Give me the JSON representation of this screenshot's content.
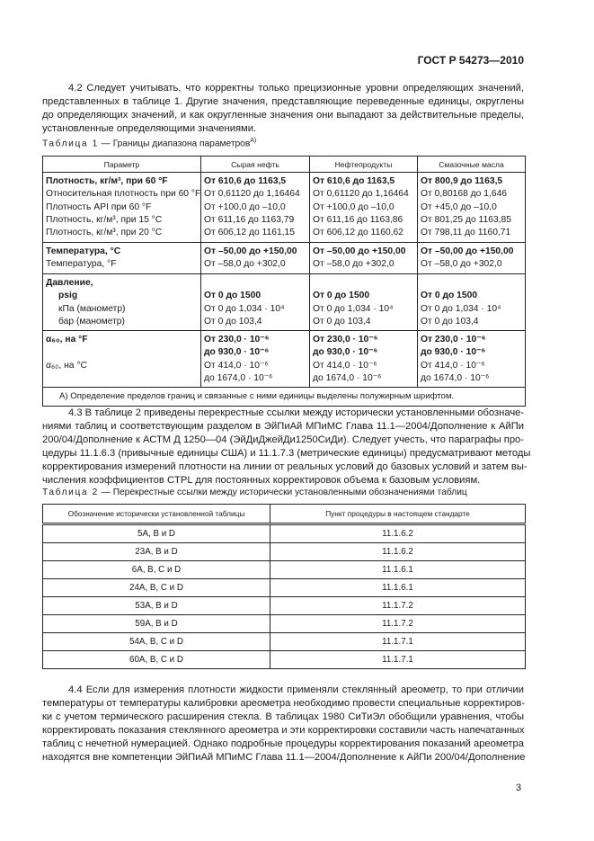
{
  "header": {
    "doc_number": "ГОСТ Р 54273—2010"
  },
  "para_4_2": {
    "lines": [
      "4.2 Следует учитывать, что корректны только прецизионные уровни определяющих значений,",
      "представленных в таблице 1. Другие значения, представляющие переведенные единицы, округлены",
      "до определяющих значений, и как округленные значения они выпадают за действительные пределы,",
      "установленные определяющими значениями."
    ]
  },
  "table1": {
    "caption_label": "Таблица 1",
    "caption_title": " — Границы диапазона параметров",
    "caption_sup": "А)",
    "headers": [
      "Параметр",
      "Сырая нефть",
      "Нефтепродукты",
      "Смазочные масла"
    ],
    "groups": [
      {
        "param": [
          {
            "t": "Плотность, кг/м³, при 60 °F",
            "b": true
          },
          {
            "t": "Относительная плотность при 60 °F"
          },
          {
            "t": "Плотность API при 60 °F"
          },
          {
            "t": "Плотность, кг/м³, при 15 °C"
          },
          {
            "t": "Плотность, кг/м³, при 20 °C"
          }
        ],
        "cols": [
          [
            {
              "t": "От 610,6 до 1163,5",
              "b": true
            },
            {
              "t": "От 0,61120 до 1,16464"
            },
            {
              "t": "От +100,0 до –10,0"
            },
            {
              "t": "От 611,16 до 1163,79"
            },
            {
              "t": "От 606,12 до 1161,15"
            }
          ],
          [
            {
              "t": "От 610,6 до 1163,5",
              "b": true
            },
            {
              "t": "От 0,61120 до 1,16464"
            },
            {
              "t": "От +100,0 до –10,0"
            },
            {
              "t": "От 611,16 до 1163,86"
            },
            {
              "t": "От 606,12 до 1160,62"
            }
          ],
          [
            {
              "t": "От 800,9 до 1163,5",
              "b": true
            },
            {
              "t": "От 0,80168 до 1,646"
            },
            {
              "t": "От +45,0 до –10,0"
            },
            {
              "t": "От 801,25 до 1163,85"
            },
            {
              "t": "От 798,11 до 1160,71"
            }
          ]
        ]
      },
      {
        "param": [
          {
            "t": "Температура, °C",
            "b": true
          },
          {
            "t": "Температура, °F"
          }
        ],
        "cols": [
          [
            {
              "t": "От –50,00 до +150,00",
              "b": true
            },
            {
              "t": "От –58,0 до +302,0"
            }
          ],
          [
            {
              "t": "От –50,00 до +150,00",
              "b": true
            },
            {
              "t": "От –58,0 до +302,0"
            }
          ],
          [
            {
              "t": "От –50,00 до +150,00",
              "b": true
            },
            {
              "t": "От –58,0 до +302,0"
            }
          ]
        ]
      },
      {
        "param": [
          {
            "t": "Давление,",
            "b": true
          },
          {
            "t": "psig",
            "b": true,
            "i": true
          },
          {
            "t": "кПа (манометр)",
            "i": true
          },
          {
            "t": "бар (манометр)",
            "i": true
          }
        ],
        "cols": [
          [
            {
              "t": ""
            },
            {
              "t": "От 0 до 1500",
              "b": true
            },
            {
              "t": "От 0 до 1,034 · 10⁴"
            },
            {
              "t": "От 0 до 103,4"
            }
          ],
          [
            {
              "t": ""
            },
            {
              "t": "От 0 до 1500",
              "b": true
            },
            {
              "t": "От 0 до 1,034 · 10⁴"
            },
            {
              "t": "От 0 до 103,4"
            }
          ],
          [
            {
              "t": ""
            },
            {
              "t": "От 0 до 1500",
              "b": true
            },
            {
              "t": "От 0 до 1,034 · 10⁴"
            },
            {
              "t": "От 0 до 103,4"
            }
          ]
        ]
      },
      {
        "param": [
          {
            "t": "α₆₀, на °F",
            "b": true
          },
          {
            "t": ""
          },
          {
            "t": "α₆₀, на °C"
          }
        ],
        "cols": [
          [
            {
              "t": "От 230,0 · 10⁻⁶",
              "b": true
            },
            {
              "t": "до 930,0 · 10⁻⁶",
              "b": true
            },
            {
              "t": "От 414,0 · 10⁻⁶"
            },
            {
              "t": "до 1674,0 · 10⁻⁶"
            }
          ],
          [
            {
              "t": "От 230,0 · 10⁻⁶",
              "b": true
            },
            {
              "t": "до 930,0 · 10⁻⁶",
              "b": true
            },
            {
              "t": "От 414,0 · 10⁻⁶"
            },
            {
              "t": "до 1674,0 · 10⁻⁶"
            }
          ],
          [
            {
              "t": "От 230,0 · 10⁻⁶",
              "b": true
            },
            {
              "t": "до 930,0 · 10⁻⁶",
              "b": true
            },
            {
              "t": "От 414,0 · 10⁻⁶"
            },
            {
              "t": "до 1674,0 · 10⁻⁶"
            }
          ]
        ]
      }
    ],
    "footnote": "А) Определение пределов границ и связанные с ними единицы выделены полужирным шрифтом."
  },
  "para_4_3": {
    "lines": [
      "4.3 В таблице 2 приведены перекрестные ссылки между исторически установленными обозначе-",
      "ниями таблиц и соответствующим разделом в ЭйПиАй МПиМС Глава 11.1—2004/Дополнение к АйПи",
      "200/04/Дополнение к АСТМ Д 1250—04 (ЭйДиДжейДи1250СиДи). Следует учесть, что параграфы про-",
      "цедуры 11.1.6.3 (привычные единицы США) и 11.1.7.3 (метрические единицы) предусматривают методы",
      "корректирования измерений плотности на линии от реальных условий до базовых условий и затем вы-",
      "числения коэффициентов CTPL для постоянных корректировок объема к базовым условиям."
    ]
  },
  "table2": {
    "caption_label": "Таблица 2",
    "caption_title": " — Перекрестные ссылки между исторически установленными обозначениями таблиц",
    "headers": [
      "Обозначение исторически установленной таблицы",
      "Пункт процедуры в настоящем стандарте"
    ],
    "rows": [
      [
        "5A, B и D",
        "11.1.6.2"
      ],
      [
        "23A, B и D",
        "11.1.6.2"
      ],
      [
        "6A, B, C и D",
        "11.1.6.1"
      ],
      [
        "24A, B, C и D",
        "11.1.6.1"
      ],
      [
        "53A, B и D",
        "11.1.7.2"
      ],
      [
        "59A, B и D",
        "11.1.7.2"
      ],
      [
        "54A, B, C и D",
        "11.1.7.1"
      ],
      [
        "60A, B, C и D",
        "11.1.7.1"
      ]
    ]
  },
  "para_4_4": {
    "lines": [
      "4.4 Если для измерения плотности жидкости применяли стеклянный ареометр, то при отличии",
      "температуры от температуры калибровки ареометра необходимо провести специальные корректиров-",
      "ки с учетом термического расширения стекла. В таблицах 1980 СиТиЭл обобщили уравнения, чтобы",
      "корректировать показания стеклянного ареометра и эти корректировки составили часть напечатанных",
      "таблиц с нечетной нумерацией. Однако подробные процедуры корректирования показаний ареометра",
      "находятся вне компетенции ЭйПиАй МПиМС Глава 11.1—2004/Дополнение к АйПи 200/04/Дополнение"
    ]
  },
  "footer": {
    "page_number": "3"
  }
}
